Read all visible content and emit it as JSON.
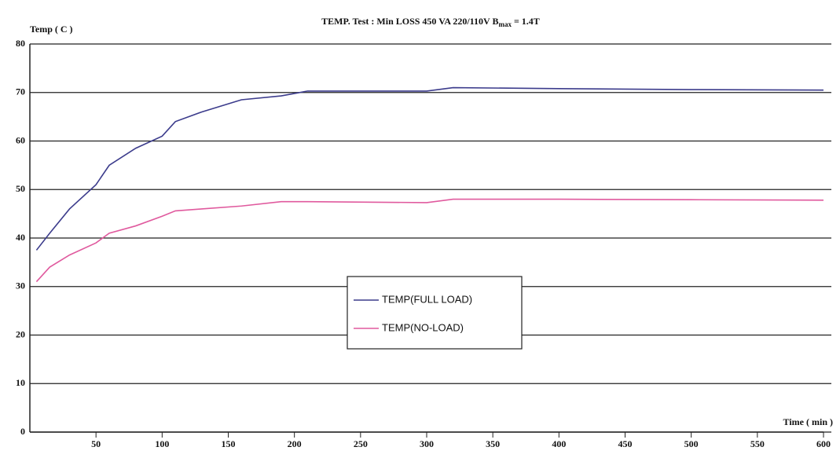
{
  "chart_data": {
    "type": "line",
    "title": [
      "TEMP. Test : Min LOSS 450 VA 220/110V B",
      "max",
      " = 1.4T"
    ],
    "ylabel": "Temp ( C )",
    "xlabel": "Time ( min )",
    "x": [
      5,
      15,
      30,
      50,
      60,
      80,
      100,
      110,
      130,
      160,
      190,
      210,
      300,
      320,
      400,
      500,
      600
    ],
    "series": [
      {
        "name": "TEMP(FULL LOAD)",
        "color": "#3c3c8c",
        "values": [
          37.5,
          41,
          46,
          51,
          55,
          58.5,
          61,
          64,
          66,
          68.5,
          69.3,
          70.3,
          70.3,
          71,
          70.8,
          70.6,
          70.5
        ]
      },
      {
        "name": "TEMP(NO-LOAD)",
        "color": "#e05a9e",
        "values": [
          31,
          34,
          36.5,
          39,
          41,
          42.5,
          44.5,
          45.6,
          46,
          46.6,
          47.5,
          47.5,
          47.3,
          48,
          48,
          47.9,
          47.8
        ]
      }
    ],
    "xlim": [
      0,
      600
    ],
    "xticks": [
      50,
      100,
      150,
      200,
      250,
      300,
      350,
      400,
      450,
      500,
      550,
      600
    ],
    "ylim": [
      0,
      80
    ],
    "yticks": [
      0,
      10,
      20,
      30,
      40,
      50,
      60,
      70,
      80
    ],
    "grid": true,
    "legend": "center"
  }
}
